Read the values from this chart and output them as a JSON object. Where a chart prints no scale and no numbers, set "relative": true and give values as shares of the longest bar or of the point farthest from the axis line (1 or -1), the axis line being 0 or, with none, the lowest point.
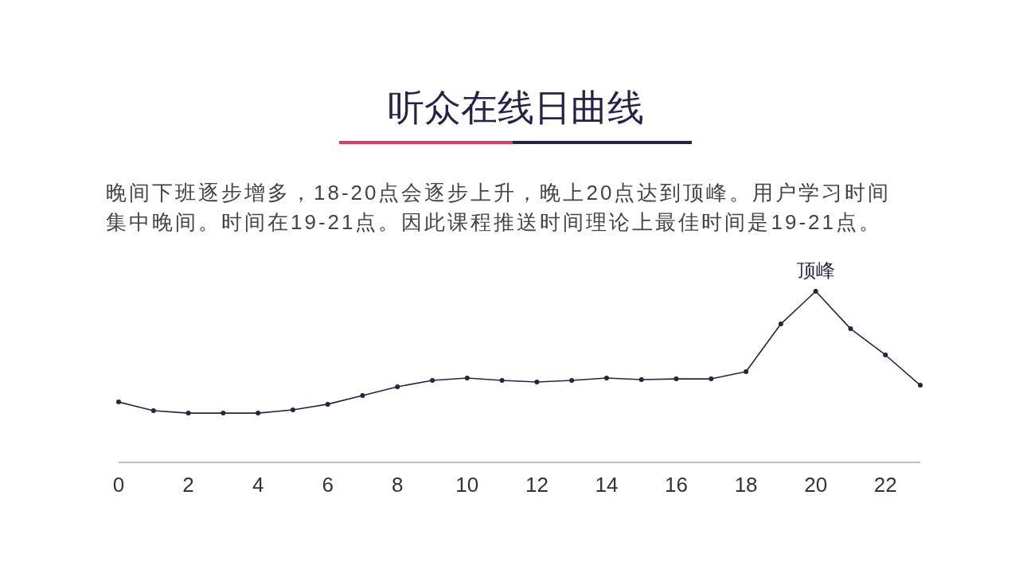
{
  "chart_data": {
    "type": "line",
    "title": "听众在线日曲线",
    "subtitle": "晚间下班逐步增多，18-20点会逐步上升，晚上20点达到顶峰。用户学习时间集中晚间。时间在19-21点。因此课程推送时间理论上最佳时间是19-21点。",
    "relative": true,
    "x": [
      0,
      1,
      2,
      3,
      4,
      5,
      6,
      7,
      8,
      9,
      10,
      11,
      12,
      13,
      14,
      15,
      16,
      17,
      18,
      19,
      20,
      21,
      22,
      23
    ],
    "series": [
      {
        "color": "#2b2046",
        "values": [
          0.353,
          0.302,
          0.288,
          0.288,
          0.288,
          0.307,
          0.34,
          0.391,
          0.442,
          0.479,
          0.493,
          0.479,
          0.47,
          0.479,
          0.493,
          0.484,
          0.488,
          0.488,
          0.53,
          0.809,
          1,
          0.781,
          0.628,
          0.451
        ]
      }
    ],
    "xlim": [
      0,
      23
    ],
    "xticks": [
      0,
      2,
      4,
      6,
      8,
      10,
      12,
      14,
      16,
      18,
      20,
      22
    ],
    "marker": "circle",
    "annotations": [
      {
        "text": "顶峰",
        "x": 20,
        "y": 1
      }
    ]
  }
}
